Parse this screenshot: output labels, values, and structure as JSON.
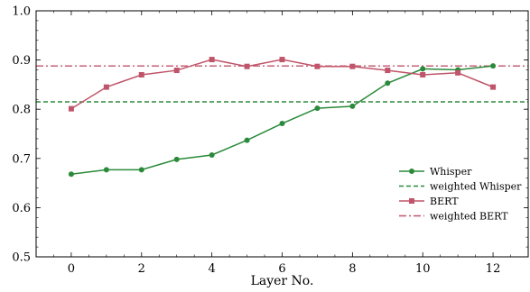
{
  "chart_data": {
    "type": "line",
    "xlabel": "Layer No.",
    "ylabel": "",
    "xlim": [
      -1,
      13
    ],
    "ylim": [
      0.5,
      1.0
    ],
    "x": [
      0,
      1,
      2,
      3,
      4,
      5,
      6,
      7,
      8,
      9,
      10,
      11,
      12
    ],
    "x_ticks": [
      0,
      2,
      4,
      6,
      8,
      10,
      12
    ],
    "x_tick_labels": [
      "0",
      "2",
      "4",
      "6",
      "8",
      "10",
      "12"
    ],
    "y_ticks": [
      0.5,
      0.6,
      0.7,
      0.8,
      0.9,
      1.0
    ],
    "y_tick_labels": [
      "0.5",
      "0.6",
      "0.7",
      "0.8",
      "0.9",
      "1.0"
    ],
    "grid": false,
    "legend_position": "bottom-right",
    "series": [
      {
        "name": "Whisper",
        "color": "#2a8a3a",
        "marker": "circle",
        "values": [
          0.668,
          0.677,
          0.677,
          0.698,
          0.707,
          0.737,
          0.771,
          0.802,
          0.806,
          0.853,
          0.882,
          0.88,
          0.888
        ]
      },
      {
        "name": "BERT",
        "color": "#c0546a",
        "marker": "square",
        "values": [
          0.801,
          0.845,
          0.87,
          0.879,
          0.901,
          0.887,
          0.901,
          0.887,
          0.887,
          0.879,
          0.87,
          0.874,
          0.845
        ]
      }
    ],
    "reference_lines": [
      {
        "name": "weighted Whisper",
        "value": 0.815,
        "color": "#2a8a3a",
        "style": "dashed"
      },
      {
        "name": "weighted BERT",
        "value": 0.888,
        "color": "#c0546a",
        "style": "dashdot"
      }
    ]
  }
}
